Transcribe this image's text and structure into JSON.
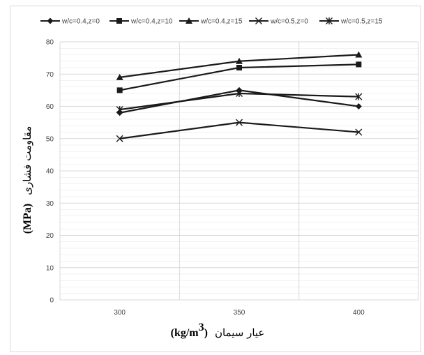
{
  "chart_data": {
    "type": "line",
    "x": [
      300,
      350,
      400
    ],
    "x_tick_labels": [
      "300",
      "350",
      "400"
    ],
    "ylim": [
      0,
      80
    ],
    "y_ticks": [
      0,
      10,
      20,
      30,
      40,
      50,
      60,
      70,
      80
    ],
    "y_tick_labels": [
      "0",
      "10",
      "20",
      "30",
      "40",
      "50",
      "60",
      "70",
      "80"
    ],
    "grid": true,
    "legend_position": "top",
    "series": [
      {
        "name": "w/c=0.4,z=0",
        "marker": "diamond",
        "values": [
          58,
          65,
          60
        ]
      },
      {
        "name": "w/c=0.4,z=10",
        "marker": "square",
        "values": [
          65,
          72,
          73
        ]
      },
      {
        "name": "w/c=0.4,z=15",
        "marker": "triangle",
        "values": [
          69,
          74,
          76
        ]
      },
      {
        "name": "w/c=0.5,z=0",
        "marker": "x",
        "values": [
          50,
          55,
          52
        ]
      },
      {
        "name": "w/c=0.5,z=15",
        "marker": "star",
        "values": [
          59,
          64,
          63
        ]
      }
    ],
    "xlabel_text": "عیار سیمان",
    "xlabel_unit": "(kg/m",
    "xlabel_unit_sup": "3",
    "xlabel_unit_close": ")",
    "ylabel_text": "مقاومت فشاری",
    "ylabel_unit": "(MPa)",
    "colors": {
      "line": "#1a1a1a",
      "grid": "#d9d9d9",
      "text": "#404040"
    }
  }
}
